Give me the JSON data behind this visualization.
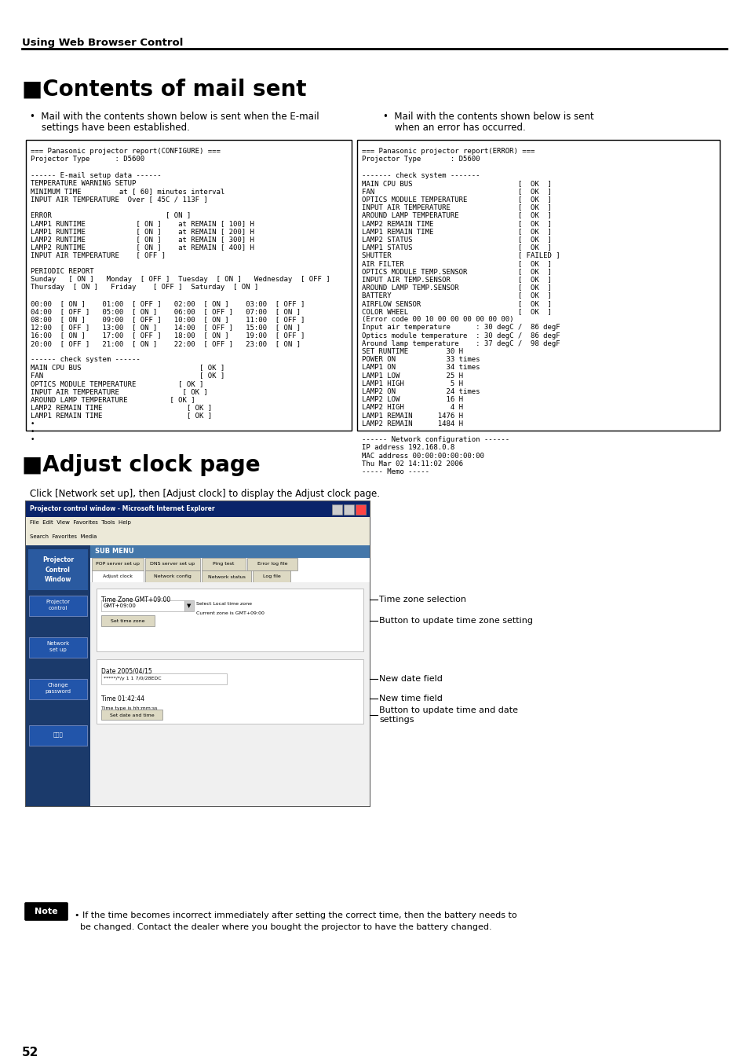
{
  "bg_color": "#ffffff",
  "page_number": "52",
  "header_text": "Using Web Browser Control",
  "section1_title": "■Contents of mail sent",
  "section2_title": "■Adjust clock page",
  "bullet1_line1": "•  Mail with the contents shown below is sent when the E-mail",
  "bullet1_line2": "    settings have been established.",
  "bullet2_line1": "•  Mail with the contents shown below is sent",
  "bullet2_line2": "    when an error has occurred.",
  "configure_lines": [
    "=== Panasonic projector report(CONFIGURE) ===",
    "Projector Type      : D5600",
    "",
    "------ E-mail setup data ------",
    "TEMPERATURE WARNING SETUP",
    "MINIMUM TIME         at [ 60] minutes interval",
    "INPUT AIR TEMPERATURE  Over [ 45C / 113F ]",
    "",
    "ERROR                           [ ON ]",
    "LAMP1 RUNTIME            [ ON ]    at REMAIN [ 100] H",
    "LAMP1 RUNTIME            [ ON ]    at REMAIN [ 200] H",
    "LAMP2 RUNTIME            [ ON ]    at REMAIN [ 300] H",
    "LAMP2 RUNTIME            [ ON ]    at REMAIN [ 400] H",
    "INPUT AIR TEMPERATURE    [ OFF ]",
    "",
    "PERIODIC REPORT",
    "Sunday   [ ON ]   Monday  [ OFF ]  Tuesday  [ ON ]   Wednesday  [ OFF ]",
    "Thursday  [ ON ]   Friday    [ OFF ]  Saturday  [ ON ]",
    "",
    "00:00  [ ON ]    01:00  [ OFF ]   02:00  [ ON ]    03:00  [ OFF ]",
    "04:00  [ OFF ]   05:00  [ ON ]    06:00  [ OFF ]   07:00  [ ON ]",
    "08:00  [ ON ]    09:00  [ OFF ]   10:00  [ ON ]    11:00  [ OFF ]",
    "12:00  [ OFF ]   13:00  [ ON ]    14:00  [ OFF ]   15:00  [ ON ]",
    "16:00  [ ON ]    17:00  [ OFF ]   18:00  [ ON ]    19:00  [ OFF ]",
    "20:00  [ OFF ]   21:00  [ ON ]    22:00  [ OFF ]   23:00  [ ON ]",
    "",
    "------ check system ------",
    "MAIN CPU BUS                            [ OK ]",
    "FAN                                     [ OK ]",
    "OPTICS MODULE TEMPERATURE          [ OK ]",
    "INPUT AIR TEMPERATURE               [ OK ]",
    "AROUND LAMP TEMPERATURE          [ OK ]",
    "LAMP2 REMAIN TIME                    [ OK ]",
    "LAMP1 REMAIN TIME                    [ OK ]",
    "•",
    "•",
    "•"
  ],
  "error_lines": [
    "=== Panasonic projector report(ERROR) ===",
    "Projector Type       : D5600",
    "",
    "------- check system -------",
    "MAIN CPU BUS                         [  OK  ]",
    "FAN                                  [  OK  ]",
    "OPTICS MODULE TEMPERATURE            [  OK  ]",
    "INPUT AIR TEMPERATURE                [  OK  ]",
    "AROUND LAMP TEMPERATURE              [  OK  ]",
    "LAMP2 REMAIN TIME                    [  OK  ]",
    "LAMP1 REMAIN TIME                    [  OK  ]",
    "LAMP2 STATUS                         [  OK  ]",
    "LAMP1 STATUS                         [  OK  ]",
    "SHUTTER                              [ FAILED ]",
    "AIR FILTER                           [  OK  ]",
    "OPTICS MODULE TEMP.SENSOR            [  OK  ]",
    "INPUT AIR TEMP.SENSOR                [  OK  ]",
    "AROUND LAMP TEMP.SENSOR              [  OK  ]",
    "BATTERY                              [  OK  ]",
    "AIRFLOW SENSOR                       [  OK  ]",
    "COLOR WHEEL                          [  OK  ]",
    "(Error code 00 10 00 00 00 00 00 00)",
    "Input air temperature      : 30 degC /  86 degF",
    "Optics module temperature  : 30 degC /  86 degF",
    "Around lamp temperature    : 37 degC /  98 degF",
    "SET RUNTIME         30 H",
    "POWER ON            33 times",
    "LAMP1 ON            34 times",
    "LAMP1 LOW           25 H",
    "LAMP1 HIGH           5 H",
    "LAMP2 ON            24 times",
    "LAMP2 LOW           16 H",
    "LAMP2 HIGH           4 H",
    "LAMP1 REMAIN      1476 H",
    "LAMP2 REMAIN      1484 H",
    "",
    "------ Network configuration ------",
    "IP address 192.168.0.8",
    "MAC address 00:00:00:00:00:00",
    "Thu Mar 02 14:11:02 2006",
    "----- Memo -----"
  ],
  "adjust_clock_desc": "Click [Network set up], then [Adjust clock] to display the Adjust clock page.",
  "annotations": [
    "Time zone selection",
    "Button to update time zone setting",
    "New date field",
    "Button to update time and date\nsettings",
    "New time field"
  ],
  "note_text": "• If the time becomes incorrect immediately after setting the correct time, then the battery needs to\n  be changed. Contact the dealer where you bought the projector to have the battery changed."
}
